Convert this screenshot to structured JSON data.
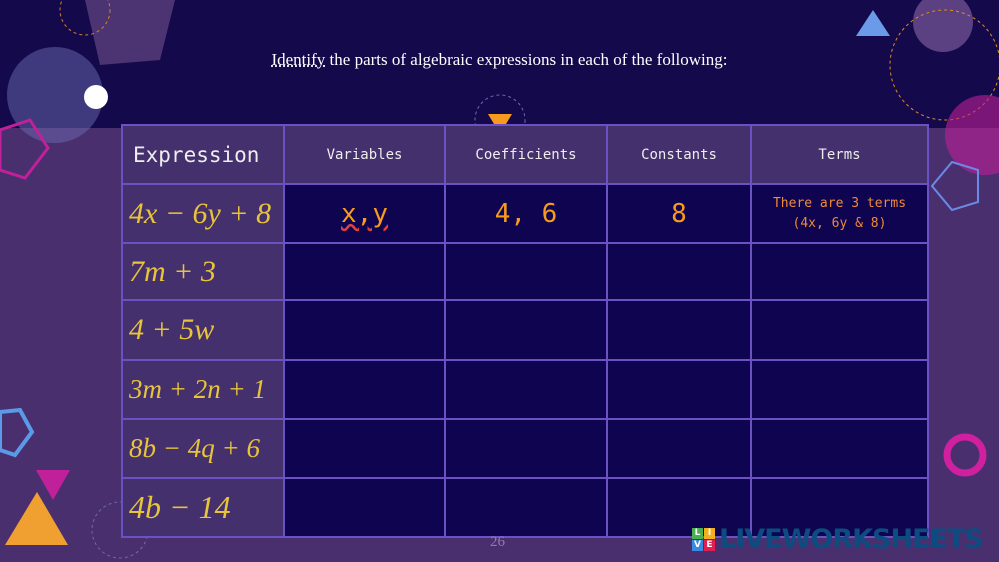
{
  "title_first": "Identify",
  "title_rest": " the parts of algebraic expressions in each of the following:",
  "headers": [
    "Expression",
    "Variables",
    "Coefficients",
    "Constants",
    "Terms"
  ],
  "rows": [
    {
      "expression": "4x − 6y + 8",
      "variables": "x,y",
      "coefficients": "4, 6",
      "constants": "8",
      "terms_line1": "There are 3 terms",
      "terms_line2": "(4x, 6y & 8)"
    },
    {
      "expression": "7m + 3"
    },
    {
      "expression": "4 + 5w"
    },
    {
      "expression": "3m + 2n + 1"
    },
    {
      "expression": "8b − 4q + 6"
    },
    {
      "expression": "4b − 14"
    }
  ],
  "page_number": "26",
  "logo": {
    "tiles": [
      "L",
      "I",
      "V",
      "E"
    ],
    "text": "LIVEWORKSHEETS"
  },
  "colors": {
    "accent": "#f79a1f",
    "expression": "#e8c43a"
  }
}
